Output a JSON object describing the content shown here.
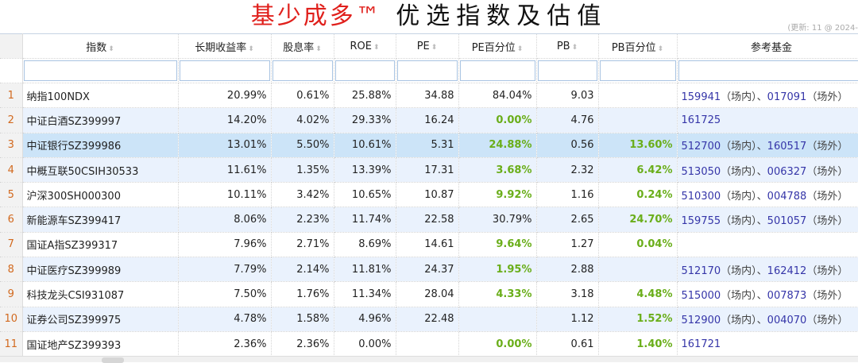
{
  "title": {
    "brand": "基少成多™",
    "rest": " 优选指数及估值"
  },
  "update_text": "(更新: 11 @ 2024-",
  "columns": [
    "指数",
    "长期收益率",
    "股息率",
    "ROE",
    "PE",
    "PE百分位",
    "PB",
    "PB百分位",
    "参考基金"
  ],
  "sort_icon": "sort-arrows-icon",
  "accent_green": "#6aae1a",
  "fund_labels": {
    "onsite": "（场内）",
    "offsite": "（场外）",
    "sep": "、"
  },
  "rows": [
    {
      "n": "1",
      "name": "纳指100NDX",
      "ret": "20.99%",
      "div": "0.61%",
      "roe": "25.88%",
      "pe": "34.88",
      "pe_pct": "84.04%",
      "pe_green": false,
      "pb": "9.03",
      "pb_pct": "",
      "pb_green": false,
      "fund1": "159941",
      "fund2": "017091"
    },
    {
      "n": "2",
      "name": "中证白酒SZ399997",
      "ret": "14.20%",
      "div": "4.02%",
      "roe": "29.33%",
      "pe": "16.24",
      "pe_pct": "0.00%",
      "pe_green": true,
      "pb": "4.76",
      "pb_pct": "",
      "pb_green": false,
      "fund1": "161725",
      "fund2": ""
    },
    {
      "n": "3",
      "name": "中证银行SZ399986",
      "ret": "13.01%",
      "div": "5.50%",
      "roe": "10.61%",
      "pe": "5.31",
      "pe_pct": "24.88%",
      "pe_green": true,
      "pb": "0.56",
      "pb_pct": "13.60%",
      "pb_green": true,
      "fund1": "512700",
      "fund2": "160517",
      "selected": true
    },
    {
      "n": "4",
      "name": "中概互联50CSIH30533",
      "ret": "11.61%",
      "div": "1.35%",
      "roe": "13.39%",
      "pe": "17.31",
      "pe_pct": "3.68%",
      "pe_green": true,
      "pb": "2.32",
      "pb_pct": "6.42%",
      "pb_green": true,
      "fund1": "513050",
      "fund2": "006327"
    },
    {
      "n": "5",
      "name": "沪深300SH000300",
      "ret": "10.11%",
      "div": "3.42%",
      "roe": "10.65%",
      "pe": "10.87",
      "pe_pct": "9.92%",
      "pe_green": true,
      "pb": "1.16",
      "pb_pct": "0.24%",
      "pb_green": true,
      "fund1": "510300",
      "fund2": "004788"
    },
    {
      "n": "6",
      "name": "新能源车SZ399417",
      "ret": "8.06%",
      "div": "2.23%",
      "roe": "11.74%",
      "pe": "22.58",
      "pe_pct": "30.79%",
      "pe_green": false,
      "pb": "2.65",
      "pb_pct": "24.70%",
      "pb_green": true,
      "fund1": "159755",
      "fund2": "501057"
    },
    {
      "n": "7",
      "name": "国证A指SZ399317",
      "ret": "7.96%",
      "div": "2.71%",
      "roe": "8.69%",
      "pe": "14.61",
      "pe_pct": "9.64%",
      "pe_green": true,
      "pb": "1.27",
      "pb_pct": "0.04%",
      "pb_green": true,
      "fund1": "",
      "fund2": ""
    },
    {
      "n": "8",
      "name": "中证医疗SZ399989",
      "ret": "7.79%",
      "div": "2.14%",
      "roe": "11.81%",
      "pe": "24.37",
      "pe_pct": "1.95%",
      "pe_green": true,
      "pb": "2.88",
      "pb_pct": "",
      "pb_green": false,
      "fund1": "512170",
      "fund2": "162412"
    },
    {
      "n": "9",
      "name": "科技龙头CSI931087",
      "ret": "7.50%",
      "div": "1.76%",
      "roe": "11.34%",
      "pe": "28.04",
      "pe_pct": "4.33%",
      "pe_green": true,
      "pb": "3.18",
      "pb_pct": "4.48%",
      "pb_green": true,
      "fund1": "515000",
      "fund2": "007873"
    },
    {
      "n": "10",
      "name": "证券公司SZ399975",
      "ret": "4.78%",
      "div": "1.58%",
      "roe": "4.96%",
      "pe": "22.48",
      "pe_pct": "",
      "pe_green": false,
      "pb": "1.12",
      "pb_pct": "1.52%",
      "pb_green": true,
      "fund1": "512900",
      "fund2": "004070"
    },
    {
      "n": "11",
      "name": "国证地产SZ399393",
      "ret": "2.36%",
      "div": "2.36%",
      "roe": "0.00%",
      "pe": "",
      "pe_pct": "0.00%",
      "pe_green": true,
      "pb": "0.61",
      "pb_pct": "1.40%",
      "pb_green": true,
      "fund1": "161721",
      "fund2": ""
    }
  ]
}
